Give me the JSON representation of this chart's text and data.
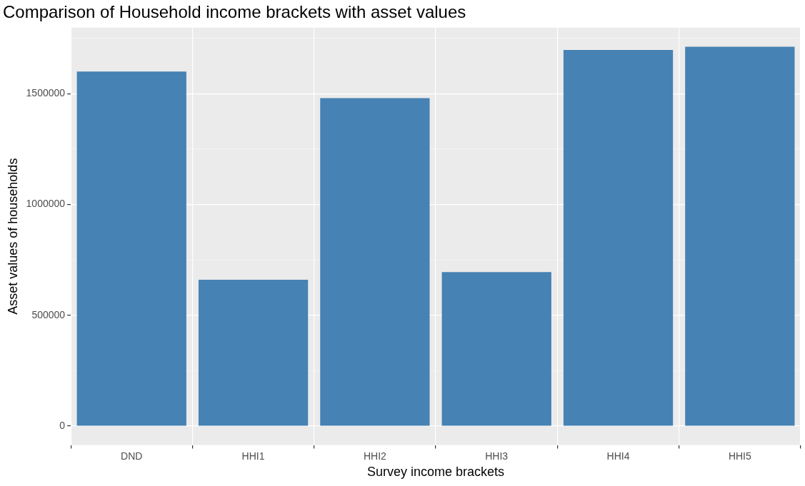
{
  "chart_data": {
    "type": "bar",
    "title": "Comparison of Household income brackets with asset values",
    "xlabel": "Survey income brackets",
    "ylabel": "Asset values of households",
    "categories": [
      "DND",
      "HHI1",
      "HHI2",
      "HHI3",
      "HHI4",
      "HHI5"
    ],
    "values": [
      1600000,
      660000,
      1480000,
      695000,
      1697000,
      1712000
    ],
    "color": "#4682b4",
    "ylim": [
      -85600,
      1797600
    ],
    "yticks": [
      0,
      {
        "value": 250000,
        "label": null
      },
      500000,
      {
        "value": 750000,
        "label": null
      },
      1000000,
      {
        "value": 1250000,
        "label": null
      },
      1500000,
      {
        "value": 1750000,
        "label": null
      }
    ],
    "grid": true,
    "legend": false
  }
}
